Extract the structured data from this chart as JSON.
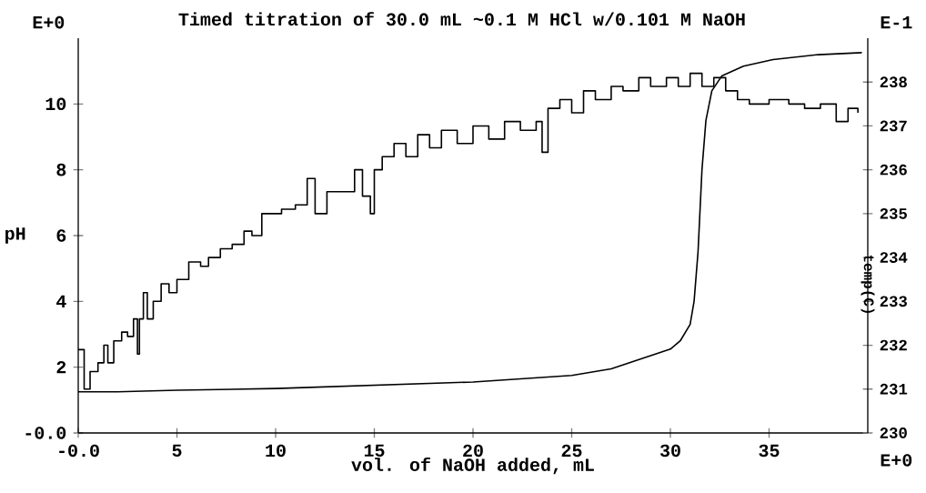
{
  "chart_data": {
    "type": "line",
    "title": "Timed titration of 30.0 mL ~0.1 M HCl w/0.101 M NaOH",
    "xlabel": "vol. of NaOH added, mL",
    "ylabel": "pH",
    "y2label": "temp(C)",
    "annotations": [
      "E+0",
      "E-1",
      "E+0"
    ],
    "xlim": [
      0,
      40
    ],
    "ylim": [
      0,
      12
    ],
    "y2lim": [
      230,
      239
    ],
    "xticks": [
      {
        "value": 0,
        "label": "-0.0"
      },
      5,
      10,
      15,
      20,
      25,
      30,
      35
    ],
    "yticks": [
      {
        "value": 0,
        "label": "-0.0"
      },
      2,
      4,
      6,
      8,
      10
    ],
    "y2ticks": [
      230,
      231,
      232,
      233,
      234,
      235,
      236,
      237,
      238
    ],
    "series": [
      {
        "color": "#000000",
        "x": [
          0,
          2,
          5,
          10,
          15,
          20,
          25,
          27,
          28,
          29,
          30,
          30.5,
          31,
          31.2,
          31.4,
          31.6,
          31.8,
          32.1,
          32.6,
          33.7,
          35.2,
          37.5,
          39.7
        ],
        "values": [
          1.25,
          1.25,
          1.3,
          1.35,
          1.45,
          1.55,
          1.75,
          1.95,
          2.15,
          2.35,
          2.55,
          2.8,
          3.3,
          4.0,
          5.5,
          8.0,
          9.5,
          10.4,
          10.85,
          11.15,
          11.35,
          11.5,
          11.56
        ]
      },
      {
        "type": "step",
        "axis": "y2",
        "color": "#000000",
        "x": [
          0,
          0.3,
          0.6,
          1.0,
          1.3,
          1.5,
          1.8,
          2.2,
          2.5,
          2.8,
          3.0,
          3.1,
          3.3,
          3.5,
          3.8,
          4.2,
          4.6,
          5.0,
          5.6,
          6.2,
          6.6,
          7.2,
          7.8,
          8.4,
          8.8,
          9.3,
          9.8,
          10.3,
          11.0,
          11.6,
          12.0,
          12.6,
          13.4,
          14.0,
          14.4,
          14.8,
          15.0,
          15.4,
          16.0,
          16.6,
          17.2,
          17.8,
          18.4,
          19.2,
          20.0,
          20.8,
          21.6,
          22.4,
          23.2,
          23.5,
          23.8,
          24.4,
          25.0,
          25.6,
          26.2,
          27.0,
          27.6,
          28.4,
          29.0,
          29.8,
          30.4,
          31.0,
          31.6,
          32.2,
          32.8,
          33.4,
          34.0,
          35.0,
          36.0,
          36.8,
          37.6,
          38.4,
          39.0,
          39.5
        ],
        "values": [
          231.9,
          231.0,
          231.4,
          231.6,
          232.0,
          231.6,
          232.1,
          232.3,
          232.2,
          232.6,
          231.8,
          232.6,
          233.2,
          232.6,
          233.0,
          233.4,
          233.2,
          233.5,
          233.9,
          233.8,
          234.0,
          234.2,
          234.3,
          234.6,
          234.5,
          235.0,
          235.0,
          235.1,
          235.2,
          235.8,
          235.0,
          235.5,
          235.5,
          236.0,
          235.4,
          235.0,
          236.0,
          236.3,
          236.6,
          236.3,
          236.8,
          236.5,
          236.9,
          236.6,
          237.0,
          236.7,
          237.1,
          236.9,
          237.1,
          236.4,
          237.4,
          237.6,
          237.3,
          237.8,
          237.6,
          237.9,
          237.8,
          238.1,
          237.9,
          238.1,
          237.9,
          238.2,
          237.9,
          238.1,
          237.8,
          237.6,
          237.5,
          237.6,
          237.5,
          237.4,
          237.5,
          237.1,
          237.4,
          237.3
        ]
      }
    ]
  }
}
